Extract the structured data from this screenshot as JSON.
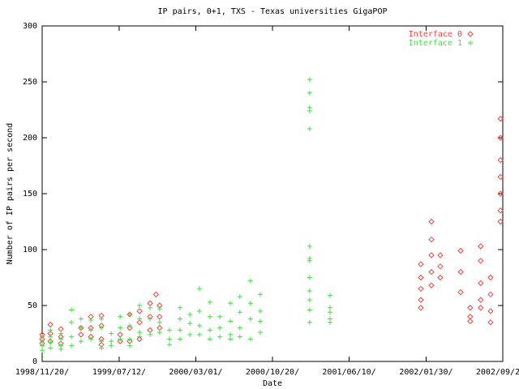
{
  "chart_data": {
    "type": "scatter",
    "title": "IP pairs, 0+1, TXS - Texas universities GigaPOP",
    "xlabel": "Date",
    "ylabel": "Number of IP pairs per second",
    "xlim": [
      "1998-11-20",
      "2002-09-20"
    ],
    "xticks": [
      {
        "value": "1998-11-20",
        "label": "1998/11/20/"
      },
      {
        "value": "1999-07-12",
        "label": "1999/07/12/"
      },
      {
        "value": "2000-03-01",
        "label": "2000/03/01/"
      },
      {
        "value": "2000-10-20",
        "label": "2000/10/20/"
      },
      {
        "value": "2001-06-10",
        "label": "2001/06/10/"
      },
      {
        "value": "2002-01-30",
        "label": "2002/01/30/"
      },
      {
        "value": "2002-09-20",
        "label": "2002/09/20/"
      }
    ],
    "ylim": [
      0,
      300
    ],
    "yticks": [
      0,
      50,
      100,
      150,
      200,
      250,
      300
    ],
    "grid": false,
    "legend": "top-right",
    "series": [
      {
        "name": "Interface 0",
        "color": "#ee4444",
        "marker": "diamond",
        "x": [
          "1998-11-20",
          "1998-11-20",
          "1998-11-20",
          "1998-12-15",
          "1998-12-15",
          "1998-12-15",
          "1999-01-16",
          "1999-01-16",
          "1999-01-16",
          "1999-03-18",
          "1999-03-18",
          "1999-04-17",
          "1999-04-17",
          "1999-04-17",
          "1999-05-19",
          "1999-05-19",
          "1999-05-19",
          "1999-05-19",
          "1999-07-15",
          "1999-07-15",
          "1999-08-13",
          "1999-08-13",
          "1999-08-13",
          "1999-09-12",
          "1999-09-12",
          "1999-09-12",
          "1999-10-14",
          "1999-10-14",
          "1999-10-14",
          "1999-11-01",
          "1999-11-12",
          "1999-11-12",
          "1999-11-12",
          "2002-01-14",
          "2002-01-14",
          "2002-01-14",
          "2002-01-14",
          "2002-01-14",
          "2002-02-15",
          "2002-02-15",
          "2002-02-15",
          "2002-02-15",
          "2002-02-15",
          "2002-03-14",
          "2002-03-14",
          "2002-03-14",
          "2002-05-15",
          "2002-05-15",
          "2002-05-15",
          "2002-06-13",
          "2002-06-13",
          "2002-06-13",
          "2002-07-15",
          "2002-07-15",
          "2002-07-15",
          "2002-07-15",
          "2002-07-15",
          "2002-08-14",
          "2002-08-14",
          "2002-08-14",
          "2002-08-14",
          "2002-09-13",
          "2002-09-13",
          "2002-09-13",
          "2002-09-13",
          "2002-09-13",
          "2002-09-13",
          "2002-09-13"
        ],
        "values": [
          24,
          20,
          16,
          33,
          25,
          18,
          29,
          22,
          16,
          30,
          24,
          40,
          30,
          22,
          41,
          32,
          20,
          15,
          24,
          18,
          42,
          30,
          18,
          45,
          35,
          20,
          52,
          40,
          28,
          60,
          50,
          40,
          30,
          87,
          75,
          65,
          55,
          48,
          125,
          109,
          95,
          80,
          68,
          95,
          85,
          75,
          99,
          80,
          62,
          48,
          40,
          36,
          103,
          90,
          70,
          55,
          48,
          75,
          60,
          45,
          35,
          217,
          200,
          180,
          165,
          150,
          135,
          125
        ]
      },
      {
        "name": "Interface 1",
        "color": "#44dd44",
        "marker": "plus",
        "x": [
          "1998-11-20",
          "1998-11-20",
          "1998-11-20",
          "1998-11-20",
          "1998-12-15",
          "1998-12-15",
          "1998-12-15",
          "1998-12-15",
          "1999-01-16",
          "1999-01-16",
          "1999-01-16",
          "1999-01-16",
          "1999-02-17",
          "1999-02-17",
          "1999-02-17",
          "1999-02-17",
          "1999-03-18",
          "1999-03-18",
          "1999-03-18",
          "1999-04-17",
          "1999-04-17",
          "1999-04-17",
          "1999-05-19",
          "1999-05-19",
          "1999-05-19",
          "1999-05-19",
          "1999-06-18",
          "1999-06-18",
          "1999-06-18",
          "1999-07-15",
          "1999-07-15",
          "1999-07-15",
          "1999-08-13",
          "1999-08-13",
          "1999-08-13",
          "1999-08-13",
          "1999-09-12",
          "1999-09-12",
          "1999-09-12",
          "1999-09-12",
          "1999-10-14",
          "1999-10-14",
          "1999-10-14",
          "1999-11-12",
          "1999-11-12",
          "1999-11-12",
          "1999-12-12",
          "1999-12-12",
          "1999-12-12",
          "2000-01-13",
          "2000-01-13",
          "2000-01-13",
          "2000-01-13",
          "2000-02-12",
          "2000-02-12",
          "2000-02-12",
          "2000-03-12",
          "2000-03-12",
          "2000-03-12",
          "2000-03-12",
          "2000-04-13",
          "2000-04-13",
          "2000-04-13",
          "2000-04-13",
          "2000-05-13",
          "2000-05-13",
          "2000-05-13",
          "2000-06-14",
          "2000-06-14",
          "2000-06-14",
          "2000-06-14",
          "2000-07-13",
          "2000-07-13",
          "2000-07-13",
          "2000-07-13",
          "2000-08-14",
          "2000-08-14",
          "2000-08-14",
          "2000-08-14",
          "2000-09-13",
          "2000-09-13",
          "2000-09-13",
          "2000-09-13",
          "2001-02-10",
          "2001-02-10",
          "2001-02-10",
          "2001-02-10",
          "2001-02-10",
          "2001-02-10",
          "2001-02-10",
          "2001-02-10",
          "2001-02-10",
          "2001-02-10",
          "2001-02-10",
          "2001-02-10",
          "2001-02-10",
          "2001-04-13",
          "2001-04-13",
          "2001-04-13",
          "2001-04-13",
          "2001-04-13"
        ],
        "values": [
          22,
          18,
          14,
          10,
          28,
          22,
          17,
          12,
          25,
          20,
          14,
          11,
          46,
          35,
          22,
          14,
          38,
          30,
          18,
          37,
          28,
          20,
          38,
          30,
          18,
          12,
          25,
          18,
          14,
          40,
          30,
          20,
          42,
          32,
          20,
          14,
          50,
          38,
          26,
          22,
          48,
          38,
          24,
          47,
          35,
          26,
          28,
          20,
          15,
          48,
          38,
          28,
          20,
          42,
          34,
          24,
          65,
          45,
          32,
          24,
          53,
          40,
          28,
          20,
          40,
          30,
          22,
          52,
          36,
          24,
          20,
          58,
          44,
          30,
          22,
          72,
          52,
          38,
          20,
          60,
          45,
          36,
          26,
          252,
          240,
          227,
          224,
          208,
          103,
          92,
          90,
          75,
          63,
          55,
          46,
          35,
          59,
          48,
          44,
          38,
          35
        ]
      }
    ]
  }
}
